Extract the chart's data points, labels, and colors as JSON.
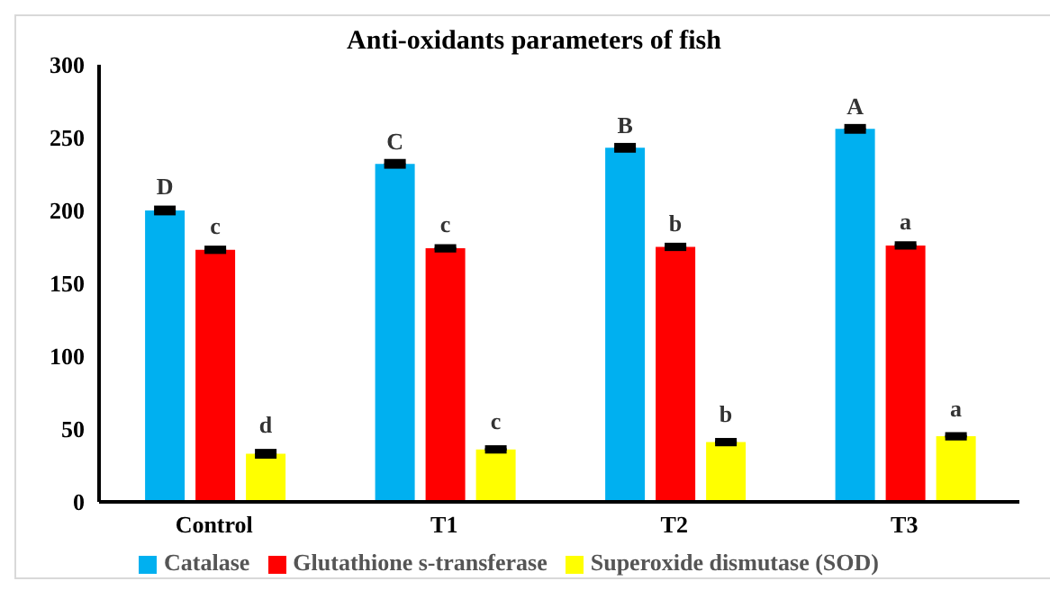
{
  "chart_data": {
    "type": "bar",
    "title": "Anti-oxidants parameters of fish",
    "categories": [
      "Control",
      "T1",
      "T2",
      "T3"
    ],
    "series": [
      {
        "name": "Catalase",
        "color": "#00b0f0",
        "values": [
          200,
          232,
          243,
          256
        ],
        "errors": [
          1.5,
          1.5,
          1.5,
          1.5
        ],
        "value_labels": [
          "D",
          "C",
          "B",
          "A"
        ]
      },
      {
        "name": "Glutathione s-transferase",
        "color": "#ff0000",
        "values": [
          173,
          174,
          175,
          176
        ],
        "errors": [
          1,
          1,
          1,
          1
        ],
        "value_labels": [
          "c",
          "c",
          "b",
          "a"
        ]
      },
      {
        "name": "Superoxide dismutase (SOD)",
        "color": "#ffff00",
        "values": [
          33,
          36,
          41,
          45
        ],
        "errors": [
          1.5,
          1,
          1,
          1
        ],
        "value_labels": [
          "d",
          "c",
          "b",
          "a"
        ]
      }
    ],
    "ylim": [
      0,
      300
    ],
    "yticks": [
      0,
      50,
      100,
      150,
      200,
      250,
      300
    ],
    "grid": false,
    "legend": "bottom"
  }
}
